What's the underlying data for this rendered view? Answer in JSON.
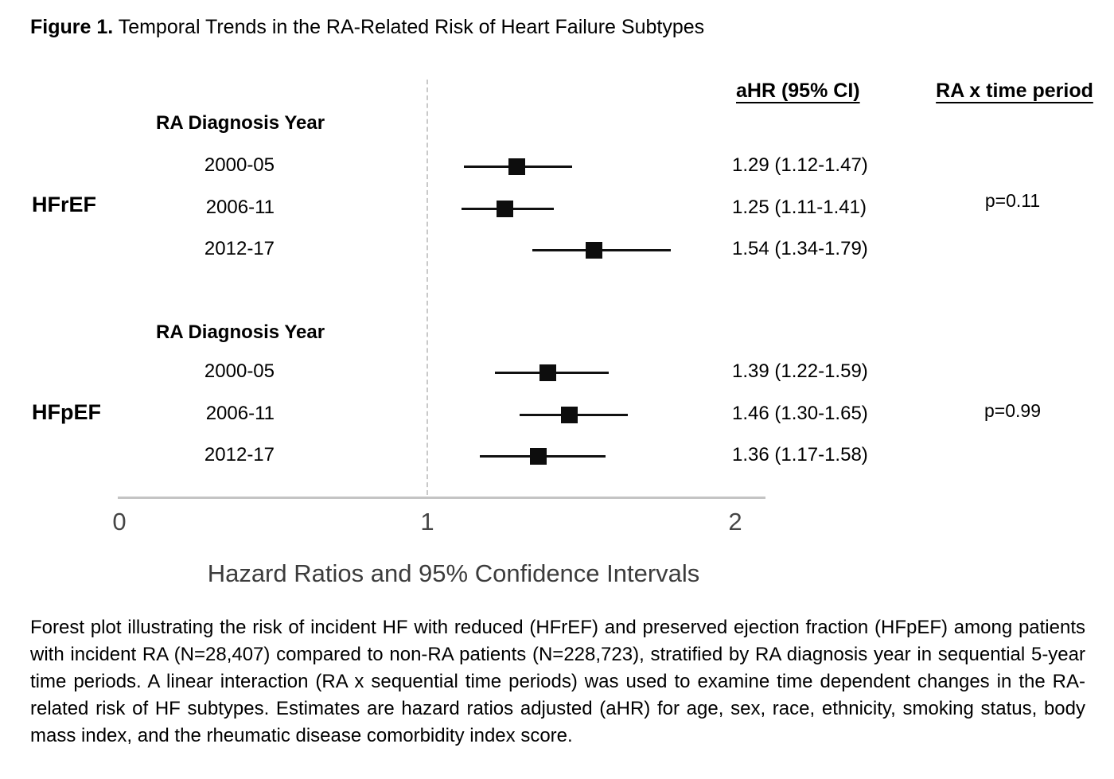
{
  "title": {
    "prefix": "Figure 1.",
    "rest": "Temporal Trends in the RA-Related Risk of Heart Failure Subtypes"
  },
  "columns": {
    "ahr": "aHR (95% CI)",
    "interaction": "RA x time period"
  },
  "axis": {
    "ticks": [
      0,
      1,
      2
    ],
    "label": "Hazard Ratios and 95% Confidence Intervals",
    "reference_line": 1
  },
  "chart_data": {
    "type": "forest",
    "xlabel": "Hazard Ratios and 95% Confidence Intervals",
    "xlim": [
      0,
      2
    ],
    "reference_line": 1,
    "groups": [
      {
        "name": "HFrEF",
        "subheader": "RA Diagnosis Year",
        "p_label": "p=0.11",
        "rows": [
          {
            "label": "2000-05",
            "hr": 1.29,
            "lo": 1.12,
            "hi": 1.47,
            "text": "1.29 (1.12-1.47)"
          },
          {
            "label": "2006-11",
            "hr": 1.25,
            "lo": 1.11,
            "hi": 1.41,
            "text": "1.25 (1.11-1.41)"
          },
          {
            "label": "2012-17",
            "hr": 1.54,
            "lo": 1.34,
            "hi": 1.79,
            "text": "1.54 (1.34-1.79)"
          }
        ]
      },
      {
        "name": "HFpEF",
        "subheader": "RA Diagnosis Year",
        "p_label": "p=0.99",
        "rows": [
          {
            "label": "2000-05",
            "hr": 1.39,
            "lo": 1.22,
            "hi": 1.59,
            "text": "1.39 (1.22-1.59)"
          },
          {
            "label": "2006-11",
            "hr": 1.46,
            "lo": 1.3,
            "hi": 1.65,
            "text": "1.46 (1.30-1.65)"
          },
          {
            "label": "2012-17",
            "hr": 1.36,
            "lo": 1.17,
            "hi": 1.58,
            "text": "1.36 (1.17-1.58)"
          }
        ]
      }
    ]
  },
  "caption": "Forest plot illustrating the risk of incident HF with reduced (HFrEF) and preserved ejection fraction (HFpEF) among patients with incident RA (N=28,407) compared to non-RA patients (N=228,723), stratified by RA diagnosis year in sequential 5-year time periods. A linear interaction (RA x sequential time periods) was used to examine time dependent changes in the RA-related risk of HF subtypes. Estimates are hazard ratios adjusted (aHR) for age, sex, race, ethnicity, smoking status, body mass index, and the rheumatic disease comorbidity index score."
}
